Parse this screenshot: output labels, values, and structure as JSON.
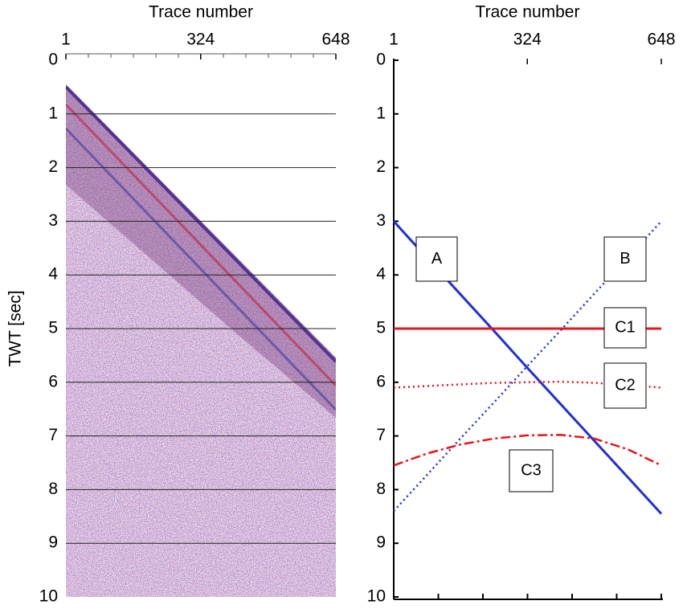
{
  "chart_data": [
    {
      "type": "image",
      "xlabel": "Trace number",
      "ylabel": "TWT [sec]",
      "xlim": [
        1,
        648
      ],
      "xticks": [
        1,
        324,
        648
      ],
      "ylim": [
        0,
        10
      ],
      "yticks": [
        0,
        1,
        2,
        3,
        4,
        5,
        6,
        7,
        8,
        9,
        10
      ],
      "y_inverted": true,
      "grid": true
    },
    {
      "type": "line",
      "xlabel": "Trace number",
      "xlim": [
        1,
        648
      ],
      "xticks": [
        1,
        324,
        648
      ],
      "ylim": [
        0,
        10
      ],
      "yticks": [
        0,
        1,
        2,
        3,
        4,
        5,
        6,
        7,
        8,
        9,
        10
      ],
      "y_inverted": true,
      "grid": false,
      "x": [
        1,
        81,
        162,
        243,
        324,
        405,
        486,
        567,
        648
      ],
      "series": [
        {
          "name": "A",
          "color": "#1f2fd6",
          "linestyle": "solid",
          "values": [
            3,
            3.68,
            4.36,
            5.04,
            5.73,
            6.41,
            7.09,
            7.77,
            8.45
          ]
        },
        {
          "name": "B",
          "color": "#1f2fd6",
          "linestyle": "dotted",
          "values": [
            8.4,
            7.73,
            7.05,
            6.38,
            5.7,
            5.03,
            4.35,
            3.68,
            3.0
          ]
        },
        {
          "name": "C1",
          "color": "#e8141c",
          "linestyle": "solid",
          "values": [
            5,
            5,
            5,
            5,
            5,
            5,
            5,
            5,
            5
          ]
        },
        {
          "name": "C2",
          "color": "#e8141c",
          "linestyle": "dotted",
          "values": [
            6.1,
            6.07,
            6.04,
            6.01,
            6.0,
            5.99,
            6.01,
            6.05,
            6.1
          ]
        },
        {
          "name": "C3",
          "color": "#e8141c",
          "linestyle": "dashdot",
          "values": [
            7.55,
            7.33,
            7.16,
            7.05,
            6.99,
            6.98,
            7.05,
            7.25,
            7.55
          ]
        }
      ]
    }
  ]
}
